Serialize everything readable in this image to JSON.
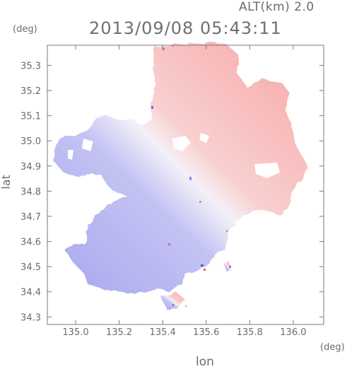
{
  "header": {
    "altitude": "ALT(km) 2.0",
    "timestamp": "2013/09/08 05:43:11"
  },
  "axes": {
    "lat_unit": "(deg)",
    "lon_unit": "(deg)",
    "lat_label": "lat",
    "lon_label": "lon",
    "lon_ticks": [
      "135.0",
      "135.2",
      "135.4",
      "135.6",
      "135.8",
      "136.0"
    ],
    "lat_ticks": [
      "35.3",
      "35.2",
      "35.1",
      "35.0",
      "34.9",
      "34.8",
      "34.7",
      "34.6",
      "34.5",
      "34.4",
      "34.3"
    ],
    "lon_range": [
      134.87,
      136.14
    ],
    "lat_range": [
      34.27,
      35.38
    ]
  },
  "colors": {
    "receding": "#f7b0b0",
    "approaching": "#b4b4f2",
    "frame": "#7a7a7a"
  }
}
